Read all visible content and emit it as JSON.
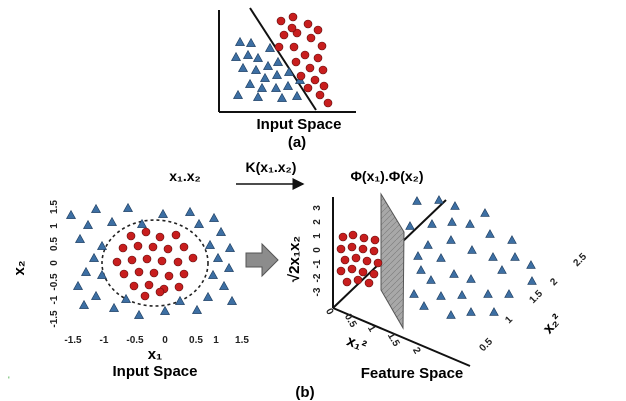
{
  "panel_a": {
    "space_label": "Input Space",
    "caption": "(a)"
  },
  "panel_b": {
    "caption": "(b)",
    "left": {
      "x_axis_label": "x₁",
      "y_axis_label": "x₂",
      "space_label": "Input Space",
      "x_ticks": [
        "-1.5",
        "-1",
        "-0.5",
        "0",
        "0.5",
        "1",
        "1.5"
      ],
      "y_ticks": [
        "1.5",
        "1",
        "0.5",
        "0",
        "-0.5",
        "-1",
        "-1.5"
      ]
    },
    "top_left_formula": "x₁.x₂",
    "kernel_formula": "K(x₁.x₂)",
    "phi_formula": "Φ(x₁).Φ(x₂)",
    "right": {
      "space_label": "Feature Space",
      "vertical_axis_label": "√2x₁x₂",
      "x1_axis_label": "x₁²",
      "x2_axis_label": "x₂²",
      "vertical_ticks": [
        "3",
        "2",
        "1",
        "0",
        "-1",
        "-2",
        "-3"
      ],
      "x1_ticks": [
        "0",
        "0.5",
        "1",
        "1.5",
        "2"
      ],
      "x2_ticks": [
        "0.5",
        "1",
        "1.5",
        "2",
        "2.5"
      ]
    }
  },
  "colors": {
    "circle_class": "#c81e1e",
    "triangle_class": "#3d6fa3",
    "plane": "#9a9a9a",
    "arrow": "#8c8c8c"
  }
}
